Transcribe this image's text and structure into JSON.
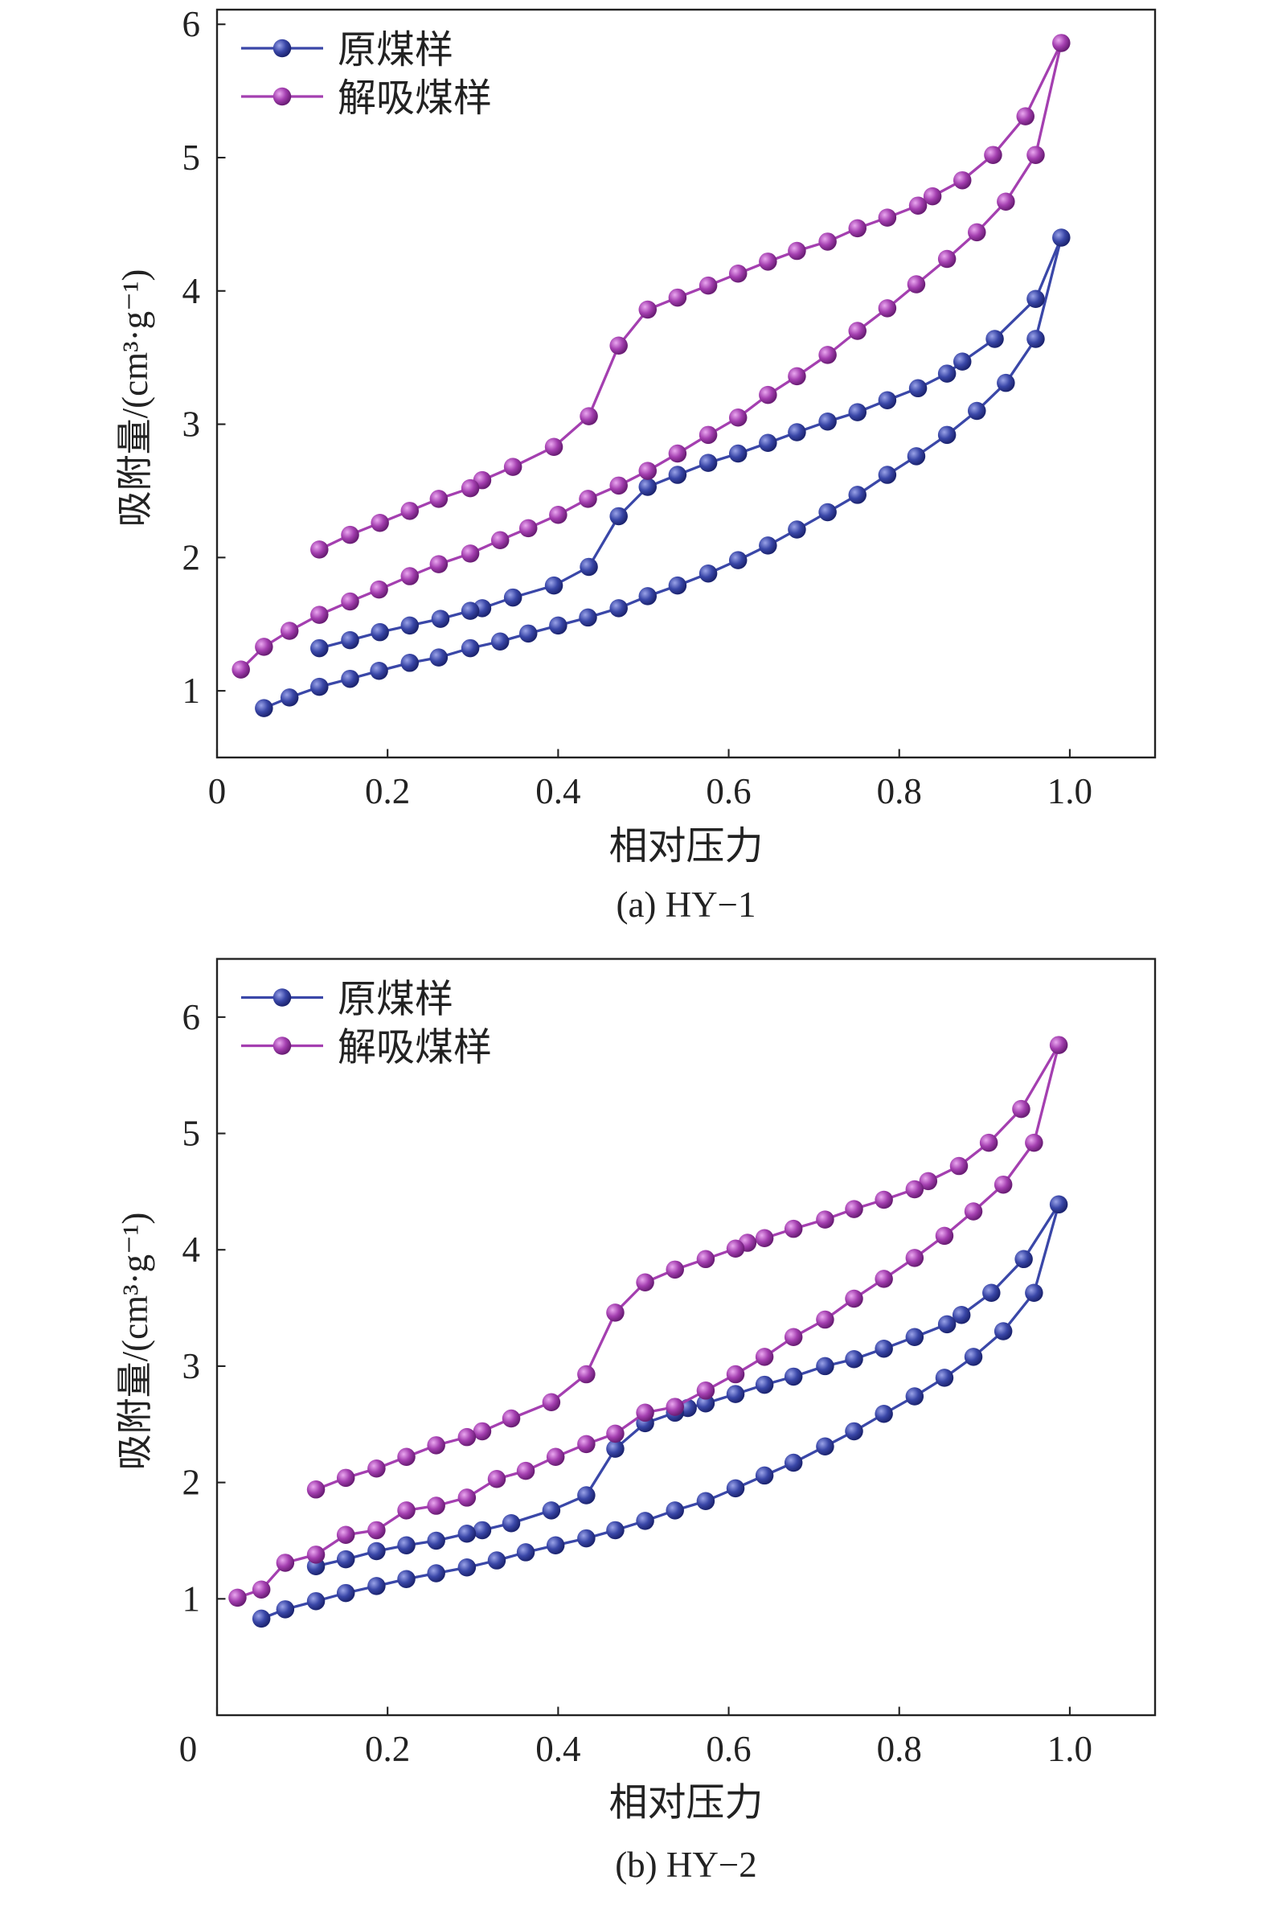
{
  "chart_data": [
    {
      "type": "line",
      "caption": "(a) HY−1",
      "xlabel": "相对压力",
      "ylabel": "吸附量/(cm³·g⁻¹)",
      "xlim": [
        0,
        1.1
      ],
      "ylim": [
        0.5,
        6.11
      ],
      "xticks": [
        "0",
        "0.2",
        "0.4",
        "0.6",
        "0.8",
        "1.0"
      ],
      "yticks": [
        "1",
        "2",
        "3",
        "4",
        "5",
        "6"
      ],
      "legend": "top-left",
      "series": [
        {
          "name": "原煤样",
          "color": "#3a47a8",
          "adsorption": [
            [
              0.055,
              0.87
            ],
            [
              0.085,
              0.95
            ],
            [
              0.12,
              1.03
            ],
            [
              0.156,
              1.09
            ],
            [
              0.19,
              1.15
            ],
            [
              0.226,
              1.21
            ],
            [
              0.26,
              1.25
            ],
            [
              0.297,
              1.32
            ],
            [
              0.332,
              1.37
            ],
            [
              0.365,
              1.43
            ],
            [
              0.4,
              1.49
            ],
            [
              0.435,
              1.55
            ],
            [
              0.471,
              1.62
            ],
            [
              0.505,
              1.71
            ],
            [
              0.54,
              1.79
            ],
            [
              0.576,
              1.88
            ],
            [
              0.611,
              1.98
            ],
            [
              0.646,
              2.09
            ],
            [
              0.68,
              2.21
            ],
            [
              0.716,
              2.34
            ],
            [
              0.751,
              2.47
            ],
            [
              0.786,
              2.62
            ],
            [
              0.82,
              2.76
            ],
            [
              0.856,
              2.92
            ],
            [
              0.891,
              3.1
            ],
            [
              0.925,
              3.31
            ],
            [
              0.96,
              3.64
            ],
            [
              0.99,
              4.4
            ]
          ],
          "desorption": [
            [
              0.99,
              4.4
            ],
            [
              0.96,
              3.94
            ],
            [
              0.912,
              3.64
            ],
            [
              0.874,
              3.47
            ],
            [
              0.856,
              3.38
            ],
            [
              0.822,
              3.27
            ],
            [
              0.786,
              3.18
            ],
            [
              0.751,
              3.09
            ],
            [
              0.716,
              3.02
            ],
            [
              0.68,
              2.94
            ],
            [
              0.646,
              2.86
            ],
            [
              0.611,
              2.78
            ],
            [
              0.576,
              2.71
            ],
            [
              0.54,
              2.62
            ],
            [
              0.505,
              2.53
            ],
            [
              0.471,
              2.31
            ],
            [
              0.436,
              1.93
            ],
            [
              0.395,
              1.79
            ],
            [
              0.347,
              1.7
            ],
            [
              0.311,
              1.62
            ],
            [
              0.297,
              1.6
            ],
            [
              0.262,
              1.54
            ],
            [
              0.226,
              1.49
            ],
            [
              0.191,
              1.44
            ],
            [
              0.156,
              1.38
            ],
            [
              0.12,
              1.32
            ]
          ]
        },
        {
          "name": "解吸煤样",
          "color": "#a43fb0",
          "adsorption": [
            [
              0.028,
              1.16
            ],
            [
              0.055,
              1.33
            ],
            [
              0.085,
              1.45
            ],
            [
              0.12,
              1.57
            ],
            [
              0.156,
              1.67
            ],
            [
              0.19,
              1.76
            ],
            [
              0.226,
              1.86
            ],
            [
              0.26,
              1.95
            ],
            [
              0.297,
              2.03
            ],
            [
              0.332,
              2.13
            ],
            [
              0.365,
              2.22
            ],
            [
              0.4,
              2.32
            ],
            [
              0.435,
              2.44
            ],
            [
              0.471,
              2.54
            ],
            [
              0.505,
              2.65
            ],
            [
              0.54,
              2.78
            ],
            [
              0.576,
              2.92
            ],
            [
              0.611,
              3.05
            ],
            [
              0.646,
              3.22
            ],
            [
              0.68,
              3.36
            ],
            [
              0.716,
              3.52
            ],
            [
              0.751,
              3.7
            ],
            [
              0.786,
              3.87
            ],
            [
              0.82,
              4.05
            ],
            [
              0.856,
              4.24
            ],
            [
              0.891,
              4.44
            ],
            [
              0.925,
              4.67
            ],
            [
              0.96,
              5.02
            ],
            [
              0.99,
              5.86
            ]
          ],
          "desorption": [
            [
              0.99,
              5.86
            ],
            [
              0.948,
              5.31
            ],
            [
              0.91,
              5.02
            ],
            [
              0.874,
              4.83
            ],
            [
              0.839,
              4.71
            ],
            [
              0.822,
              4.64
            ],
            [
              0.786,
              4.55
            ],
            [
              0.751,
              4.47
            ],
            [
              0.716,
              4.37
            ],
            [
              0.68,
              4.3
            ],
            [
              0.646,
              4.22
            ],
            [
              0.611,
              4.13
            ],
            [
              0.576,
              4.04
            ],
            [
              0.54,
              3.95
            ],
            [
              0.505,
              3.86
            ],
            [
              0.471,
              3.59
            ],
            [
              0.436,
              3.06
            ],
            [
              0.395,
              2.83
            ],
            [
              0.347,
              2.68
            ],
            [
              0.311,
              2.58
            ],
            [
              0.297,
              2.52
            ],
            [
              0.26,
              2.44
            ],
            [
              0.226,
              2.35
            ],
            [
              0.191,
              2.26
            ],
            [
              0.156,
              2.17
            ],
            [
              0.12,
              2.06
            ]
          ]
        }
      ]
    },
    {
      "type": "line",
      "caption": "(b) HY−2",
      "xlabel": "相对压力",
      "ylabel": "吸附量/(cm³·g⁻¹)",
      "xlim": [
        0,
        1.1
      ],
      "ylim": [
        0,
        6.5
      ],
      "xticks": [
        "0",
        "0.2",
        "0.4",
        "0.6",
        "0.8",
        "1.0"
      ],
      "yticks": [
        "1",
        "2",
        "3",
        "4",
        "5",
        "6"
      ],
      "legend": "top-left",
      "series": [
        {
          "name": "原煤样",
          "color": "#3a47a8",
          "adsorption": [
            [
              0.052,
              0.83
            ],
            [
              0.08,
              0.91
            ],
            [
              0.116,
              0.98
            ],
            [
              0.151,
              1.05
            ],
            [
              0.187,
              1.11
            ],
            [
              0.222,
              1.17
            ],
            [
              0.257,
              1.22
            ],
            [
              0.293,
              1.27
            ],
            [
              0.328,
              1.33
            ],
            [
              0.362,
              1.4
            ],
            [
              0.397,
              1.46
            ],
            [
              0.433,
              1.52
            ],
            [
              0.467,
              1.59
            ],
            [
              0.502,
              1.67
            ],
            [
              0.537,
              1.76
            ],
            [
              0.573,
              1.84
            ],
            [
              0.608,
              1.95
            ],
            [
              0.642,
              2.06
            ],
            [
              0.676,
              2.17
            ],
            [
              0.713,
              2.31
            ],
            [
              0.747,
              2.44
            ],
            [
              0.782,
              2.59
            ],
            [
              0.818,
              2.74
            ],
            [
              0.853,
              2.9
            ],
            [
              0.887,
              3.08
            ],
            [
              0.922,
              3.3
            ],
            [
              0.958,
              3.63
            ],
            [
              0.987,
              4.39
            ]
          ],
          "desorption": [
            [
              0.987,
              4.39
            ],
            [
              0.946,
              3.92
            ],
            [
              0.908,
              3.63
            ],
            [
              0.873,
              3.44
            ],
            [
              0.856,
              3.36
            ],
            [
              0.818,
              3.25
            ],
            [
              0.782,
              3.15
            ],
            [
              0.747,
              3.06
            ],
            [
              0.713,
              3.0
            ],
            [
              0.676,
              2.91
            ],
            [
              0.642,
              2.84
            ],
            [
              0.608,
              2.76
            ],
            [
              0.573,
              2.68
            ],
            [
              0.552,
              2.64
            ],
            [
              0.537,
              2.6
            ],
            [
              0.502,
              2.51
            ],
            [
              0.467,
              2.29
            ],
            [
              0.433,
              1.89
            ],
            [
              0.392,
              1.76
            ],
            [
              0.345,
              1.65
            ],
            [
              0.311,
              1.59
            ],
            [
              0.293,
              1.56
            ],
            [
              0.257,
              1.5
            ],
            [
              0.222,
              1.46
            ],
            [
              0.187,
              1.41
            ],
            [
              0.151,
              1.34
            ],
            [
              0.116,
              1.28
            ]
          ]
        },
        {
          "name": "解吸煤样",
          "color": "#a43fb0",
          "adsorption": [
            [
              0.024,
              1.01
            ],
            [
              0.052,
              1.08
            ],
            [
              0.08,
              1.31
            ],
            [
              0.116,
              1.38
            ],
            [
              0.151,
              1.55
            ],
            [
              0.187,
              1.59
            ],
            [
              0.222,
              1.76
            ],
            [
              0.257,
              1.8
            ],
            [
              0.293,
              1.87
            ],
            [
              0.328,
              2.03
            ],
            [
              0.362,
              2.1
            ],
            [
              0.397,
              2.22
            ],
            [
              0.433,
              2.33
            ],
            [
              0.467,
              2.42
            ],
            [
              0.502,
              2.6
            ],
            [
              0.537,
              2.65
            ],
            [
              0.573,
              2.79
            ],
            [
              0.608,
              2.93
            ],
            [
              0.642,
              3.08
            ],
            [
              0.676,
              3.25
            ],
            [
              0.713,
              3.4
            ],
            [
              0.747,
              3.58
            ],
            [
              0.782,
              3.75
            ],
            [
              0.818,
              3.93
            ],
            [
              0.853,
              4.12
            ],
            [
              0.887,
              4.33
            ],
            [
              0.922,
              4.56
            ],
            [
              0.958,
              4.92
            ],
            [
              0.987,
              5.76
            ]
          ],
          "desorption": [
            [
              0.987,
              5.76
            ],
            [
              0.943,
              5.21
            ],
            [
              0.905,
              4.92
            ],
            [
              0.87,
              4.72
            ],
            [
              0.834,
              4.59
            ],
            [
              0.818,
              4.52
            ],
            [
              0.782,
              4.43
            ],
            [
              0.747,
              4.35
            ],
            [
              0.713,
              4.26
            ],
            [
              0.676,
              4.18
            ],
            [
              0.642,
              4.1
            ],
            [
              0.622,
              4.06
            ],
            [
              0.608,
              4.01
            ],
            [
              0.573,
              3.92
            ],
            [
              0.537,
              3.83
            ],
            [
              0.502,
              3.72
            ],
            [
              0.467,
              3.46
            ],
            [
              0.433,
              2.93
            ],
            [
              0.392,
              2.69
            ],
            [
              0.345,
              2.55
            ],
            [
              0.311,
              2.44
            ],
            [
              0.293,
              2.39
            ],
            [
              0.257,
              2.32
            ],
            [
              0.222,
              2.22
            ],
            [
              0.187,
              2.12
            ],
            [
              0.151,
              2.04
            ],
            [
              0.116,
              1.94
            ]
          ]
        }
      ]
    }
  ]
}
